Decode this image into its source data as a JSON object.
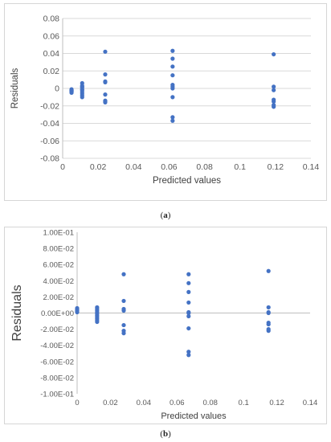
{
  "chart_data": [
    {
      "type": "scatter",
      "caption_open": "(",
      "caption_letter": "a",
      "caption_close": ")",
      "xlabel": "Predicted values",
      "ylabel": "Residuals",
      "xlim": [
        0,
        0.14
      ],
      "ylim": [
        -0.08,
        0.08
      ],
      "xticks": [
        "0",
        "0.02",
        "0.04",
        "0.06",
        "0.08",
        "0.1",
        "0.12",
        "0.14"
      ],
      "yticks": [
        "-0.08",
        "-0.06",
        "-0.04",
        "-0.02",
        "0",
        "0.02",
        "0.04",
        "0.06",
        "0.08"
      ],
      "grid": true,
      "marker_color": "#4472C4",
      "series": [
        {
          "x": [
            0.005,
            0.005,
            0.005,
            0.005,
            0.005,
            0.005,
            0.005,
            0.011,
            0.011,
            0.011,
            0.011,
            0.011,
            0.011,
            0.011,
            0.011,
            0.011,
            0.011,
            0.024,
            0.024,
            0.024,
            0.024,
            0.024,
            0.024,
            0.024,
            0.024,
            0.062,
            0.062,
            0.062,
            0.062,
            0.062,
            0.062,
            0.062,
            0.062,
            0.062,
            0.062,
            0.119,
            0.119,
            0.119,
            0.119,
            0.119,
            0.119,
            0.119
          ],
          "y": [
            -0.001,
            -0.002,
            -0.003,
            -0.004,
            -0.005,
            -0.0025,
            -0.0035,
            0.006,
            0.003,
            0.001,
            -0.001,
            -0.002,
            -0.004,
            -0.006,
            -0.008,
            -0.01,
            0.002,
            0.042,
            0.016,
            0.008,
            0.007,
            -0.007,
            -0.014,
            -0.016,
            -0.015,
            0.043,
            0.034,
            0.025,
            0.015,
            0.004,
            0.002,
            0,
            -0.01,
            -0.033,
            -0.037,
            0.039,
            0.002,
            -0.002,
            -0.013,
            -0.015,
            -0.019,
            -0.021
          ]
        }
      ]
    },
    {
      "type": "scatter",
      "caption_open": "(",
      "caption_letter": "b",
      "caption_close": ")",
      "xlabel": "Predicted values",
      "ylabel": "Residuals",
      "xlim": [
        0,
        0.14
      ],
      "ylim": [
        -0.1,
        0.1
      ],
      "xticks": [
        "0",
        "0.02",
        "0.04",
        "0.06",
        "0.08",
        "0.1",
        "0.12",
        "0.14"
      ],
      "yticks": [
        "-1.00E-01",
        "-8.00E-02",
        "-6.00E-02",
        "-4.00E-02",
        "-2.00E-02",
        "0.00E+00",
        "2.00E-02",
        "4.00E-02",
        "6.00E-02",
        "8.00E-02",
        "1.00E-01"
      ],
      "grid": false,
      "marker_color": "#4472C4",
      "series": [
        {
          "x": [
            0,
            0,
            0,
            0,
            0,
            0,
            0,
            0.012,
            0.012,
            0.012,
            0.012,
            0.012,
            0.012,
            0.012,
            0.012,
            0.012,
            0.012,
            0.028,
            0.028,
            0.028,
            0.028,
            0.028,
            0.028,
            0.028,
            0.067,
            0.067,
            0.067,
            0.067,
            0.067,
            0.067,
            0.067,
            0.067,
            0.067,
            0.067,
            0.115,
            0.115,
            0.115,
            0.115,
            0.115,
            0.115,
            0.115,
            0.115
          ],
          "y": [
            0.006,
            0.005,
            0.004,
            0.003,
            0.002,
            0.001,
            0.0035,
            0.007,
            0.003,
            0.001,
            -0.001,
            -0.003,
            -0.005,
            -0.007,
            -0.009,
            -0.011,
            0.005,
            0.048,
            0.015,
            0.005,
            0.003,
            -0.015,
            -0.022,
            -0.025,
            0.048,
            0.037,
            0.026,
            0.013,
            0,
            -0.004,
            -0.019,
            -0.048,
            -0.052,
            0.001,
            0.052,
            0.007,
            0.001,
            0,
            -0.012,
            -0.014,
            -0.02,
            -0.022
          ]
        }
      ]
    }
  ]
}
